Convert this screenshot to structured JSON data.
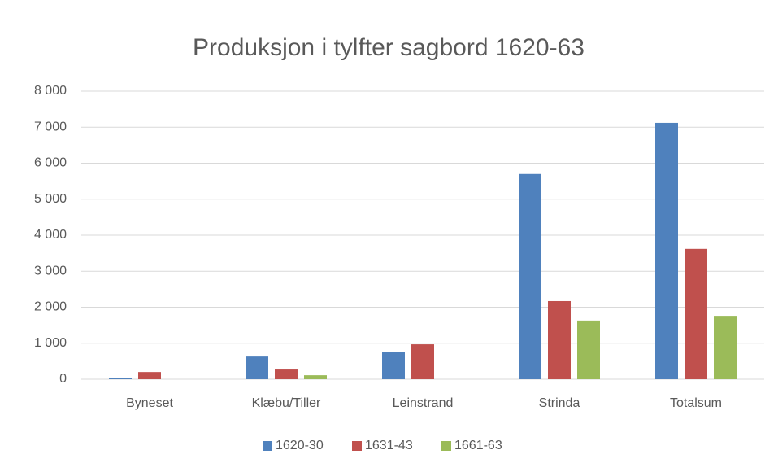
{
  "chart_data": {
    "type": "bar",
    "title": "Produksjon i tylfter sagbord 1620-63",
    "categories": [
      "Byneset",
      "Klæbu/Tiller",
      "Leinstrand",
      "Strinda",
      "Totalsum"
    ],
    "series": [
      {
        "name": "1620-30",
        "color": "#4f81bd",
        "values": [
          40,
          630,
          750,
          5700,
          7120
        ]
      },
      {
        "name": "1631-43",
        "color": "#c0504d",
        "values": [
          200,
          270,
          970,
          2170,
          3620
        ]
      },
      {
        "name": "1661-63",
        "color": "#9bbb59",
        "values": [
          0,
          110,
          0,
          1630,
          1760
        ]
      }
    ],
    "ylim": [
      0,
      8000
    ],
    "yticks": [
      0,
      {
        "value": 1000,
        "label": "1 000"
      },
      {
        "value": 2000,
        "label": "2 000"
      },
      {
        "value": 3000,
        "label": "3 000"
      },
      {
        "value": 4000,
        "label": "4 000"
      },
      {
        "value": 5000,
        "label": "5 000"
      },
      {
        "value": 6000,
        "label": "6 000"
      },
      {
        "value": 7000,
        "label": "7 000"
      },
      {
        "value": 8000,
        "label": "8 000"
      }
    ],
    "grid": true,
    "legend": "bottom"
  }
}
